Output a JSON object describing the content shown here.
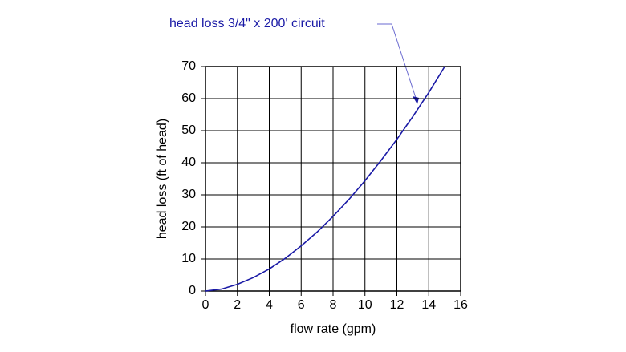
{
  "chart_data": {
    "type": "line",
    "x_label": "flow rate (gpm)",
    "y_label": "head loss (ft of head)",
    "x": [
      0,
      1,
      2,
      3,
      4,
      5,
      6,
      7,
      8,
      9,
      10,
      11,
      12,
      13,
      14,
      15
    ],
    "series": [
      {
        "name": "head loss 3/4\" x 200' circuit",
        "color": "#1a1aa6",
        "values": [
          0,
          0.6,
          2.1,
          4.2,
          6.9,
          10.2,
          14.1,
          18.4,
          23.3,
          28.6,
          34.4,
          40.7,
          47.3,
          54.4,
          61.9,
          70
        ]
      }
    ],
    "xlim": [
      0,
      16
    ],
    "ylim": [
      0,
      70
    ],
    "xticks": [
      0,
      2,
      4,
      6,
      8,
      10,
      12,
      14,
      16
    ],
    "yticks": [
      0,
      10,
      20,
      30,
      40,
      50,
      60,
      70
    ],
    "grid": true
  }
}
